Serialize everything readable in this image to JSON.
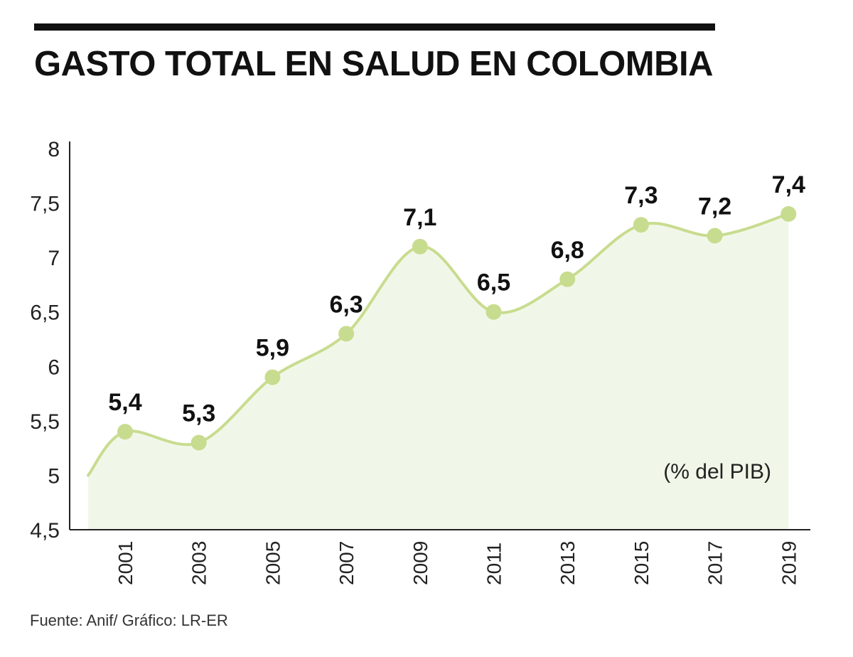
{
  "title": "GASTO TOTAL EN SALUD EN COLOMBIA",
  "source": "Fuente: Anif/ Gráfico: LR-ER",
  "colors": {
    "line": "#c8dc8f",
    "marker": "#c8dc8f",
    "fill": "#f1f7e8",
    "axis": "#222222",
    "rule": "#111111"
  },
  "chart_data": {
    "type": "area",
    "title": "GASTO TOTAL EN SALUD EN COLOMBIA",
    "unit_label": "(% del PIB)",
    "xlabel": "",
    "ylabel": "",
    "ylim": [
      4.5,
      8
    ],
    "yticks": [
      "4,5",
      "5",
      "5,5",
      "6",
      "6,5",
      "7",
      "7,5",
      "8"
    ],
    "yticks_values": [
      4.5,
      5,
      5.5,
      6,
      6.5,
      7,
      7.5,
      8
    ],
    "categories": [
      "2001",
      "2003",
      "2005",
      "2007",
      "2009",
      "2011",
      "2013",
      "2015",
      "2017",
      "2019"
    ],
    "values": [
      5.4,
      5.3,
      5.9,
      6.3,
      7.1,
      6.5,
      6.8,
      7.3,
      7.2,
      7.4
    ],
    "labels": [
      "5,4",
      "5,3",
      "5,9",
      "6,3",
      "7,1",
      "6,5",
      "6,8",
      "7,3",
      "7,2",
      "7,4"
    ],
    "grid": false,
    "legend": "none"
  }
}
